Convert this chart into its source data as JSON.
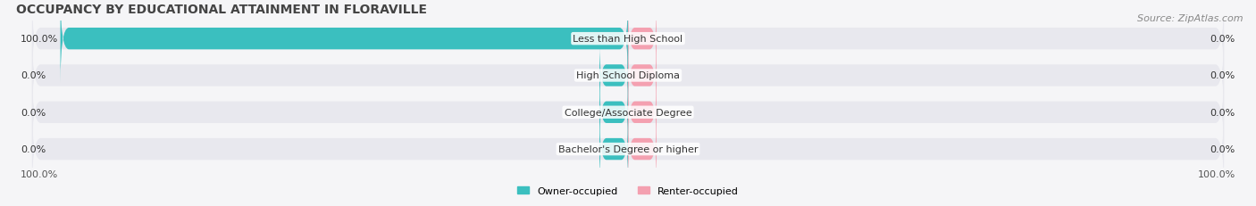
{
  "title": "OCCUPANCY BY EDUCATIONAL ATTAINMENT IN FLORAVILLE",
  "source": "Source: ZipAtlas.com",
  "categories": [
    "Less than High School",
    "High School Diploma",
    "College/Associate Degree",
    "Bachelor's Degree or higher"
  ],
  "owner_values": [
    100.0,
    0.0,
    0.0,
    0.0
  ],
  "renter_values": [
    0.0,
    0.0,
    0.0,
    0.0
  ],
  "owner_color": "#3bbfbf",
  "renter_color": "#f4a0b0",
  "bar_bg_color": "#e8e8ee",
  "owner_label": "Owner-occupied",
  "renter_label": "Renter-occupied",
  "left_footer_label": "100.0%",
  "right_footer_label": "100.0%",
  "title_fontsize": 10,
  "source_fontsize": 8,
  "label_fontsize": 8,
  "bar_height": 0.55,
  "figsize": [
    14.06,
    2.32
  ],
  "dpi": 100
}
